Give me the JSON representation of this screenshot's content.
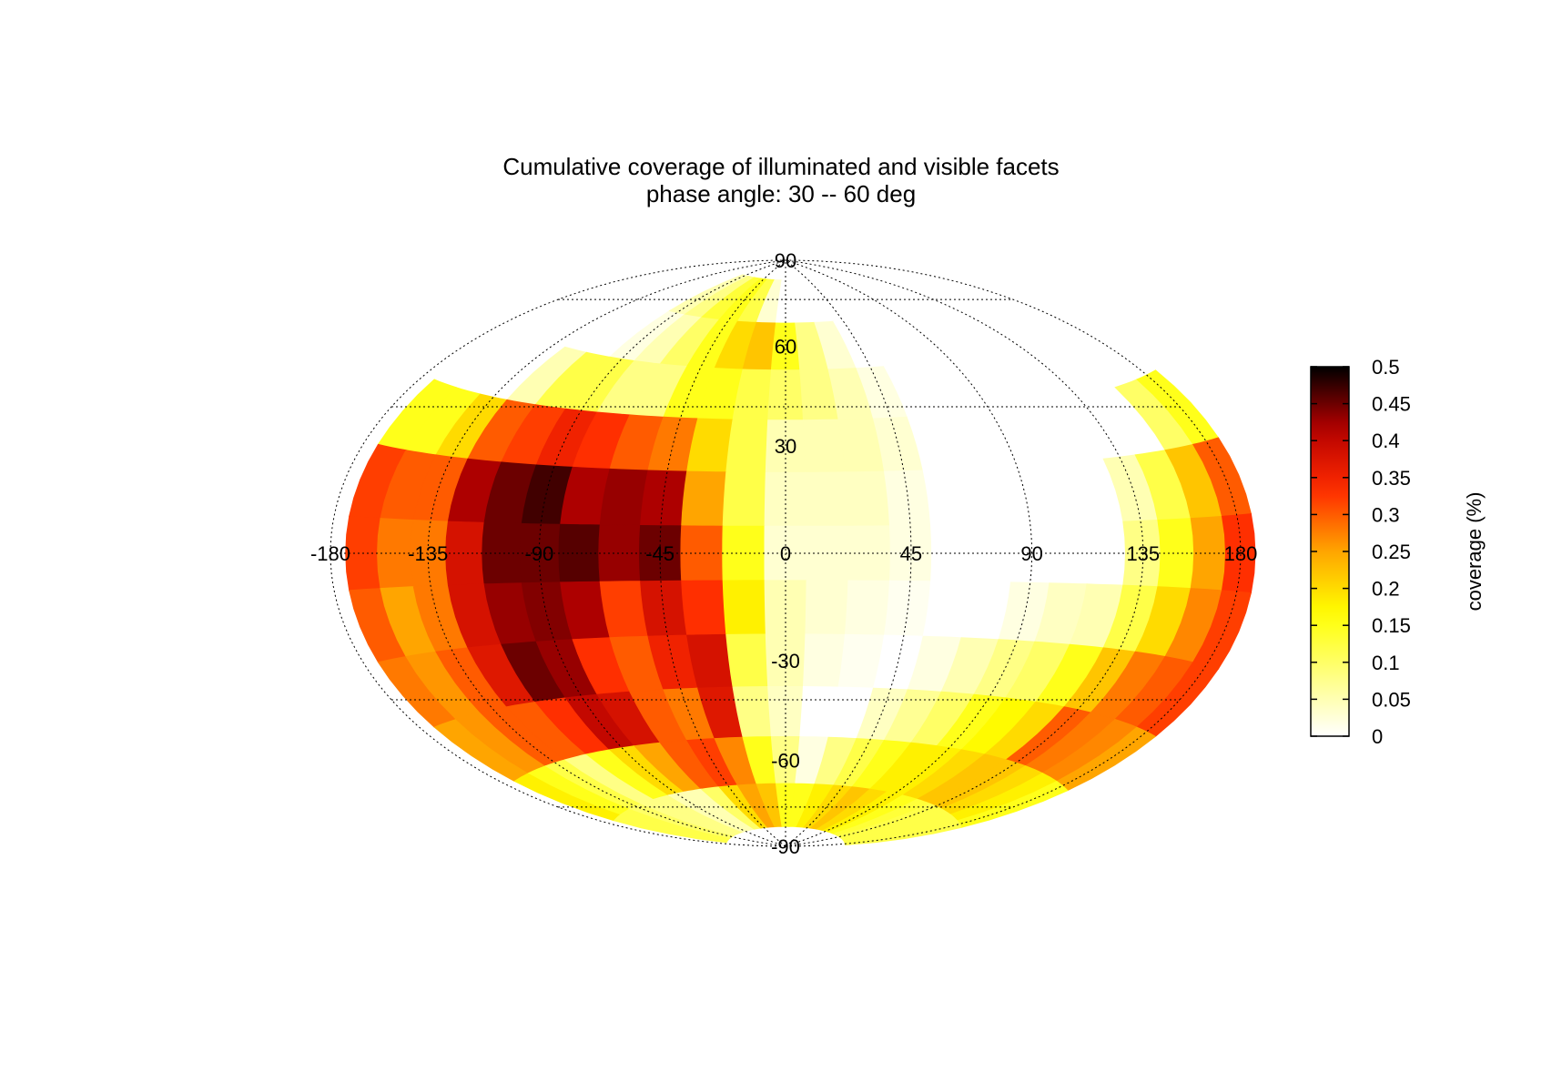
{
  "chart_data": {
    "type": "heatmap",
    "projection": "hammer-aitoff",
    "title": "Cumulative coverage of illuminated and visible facets",
    "subtitle": "phase angle:  30 --  60 deg",
    "longitude_ticks": [
      "-180",
      "-135",
      "-90",
      "-45",
      "0",
      "45",
      "90",
      "135",
      "180"
    ],
    "latitude_ticks": [
      "90",
      "60",
      "30",
      "-30",
      "-60",
      "-90"
    ],
    "grid": true,
    "colorbar": {
      "label": "coverage (%)",
      "range": [
        0,
        0.5
      ],
      "ticks": [
        "0",
        "0.05",
        "0.1",
        "0.15",
        "0.2",
        "0.25",
        "0.3",
        "0.35",
        "0.4",
        "0.45",
        "0.5"
      ],
      "colormap": [
        "#ffffff",
        "#ffff80",
        "#ffff00",
        "#ffa500",
        "#ff2a00",
        "#b40000",
        "#000000"
      ]
    },
    "lon_bins": [
      -165,
      -150,
      -135,
      -120,
      -105,
      -90,
      -75,
      -60,
      -45,
      -30,
      -15,
      0,
      15,
      30,
      45,
      60,
      75,
      90,
      105,
      120,
      135,
      150,
      165,
      180
    ],
    "lat_bins": [
      75,
      60,
      45,
      30,
      15,
      0,
      -15,
      -30,
      -45,
      -60,
      -75
    ],
    "coverage_grid": [
      [
        0,
        0,
        0,
        0,
        0,
        0.05,
        0.08,
        0.13,
        0.15,
        0.12,
        0.03,
        0,
        0,
        0,
        0,
        0,
        0,
        0,
        0,
        0,
        0,
        0,
        0,
        0
      ],
      [
        0,
        0,
        0,
        0,
        0,
        0.02,
        0.05,
        0.1,
        0.15,
        0.2,
        0.22,
        0.15,
        0.08,
        0.03,
        0,
        0,
        0,
        0,
        0,
        0,
        0,
        0,
        0,
        0
      ],
      [
        0,
        0,
        0,
        0.05,
        0.12,
        0.12,
        0.08,
        0.08,
        0.15,
        0.15,
        0.12,
        0.1,
        0.08,
        0.05,
        0.02,
        0,
        0,
        0,
        0,
        0,
        0,
        0,
        0,
        0
      ],
      [
        0.15,
        0.15,
        0.2,
        0.3,
        0.32,
        0.35,
        0.33,
        0.3,
        0.28,
        0.2,
        0.12,
        0.05,
        0.05,
        0.05,
        0.03,
        0,
        0,
        0,
        0,
        0,
        0,
        0,
        0.1,
        0.15
      ],
      [
        0.32,
        0.3,
        0.3,
        0.42,
        0.45,
        0.47,
        0.42,
        0.43,
        0.42,
        0.25,
        0.12,
        0.04,
        0.04,
        0.04,
        0.02,
        0,
        0,
        0,
        0,
        0,
        0.05,
        0.12,
        0.22,
        0.3
      ],
      [
        0.32,
        0.28,
        0.28,
        0.38,
        0.45,
        0.45,
        0.46,
        0.43,
        0.45,
        0.3,
        0.15,
        0.03,
        0.03,
        0.03,
        0.02,
        0,
        0,
        0,
        0,
        0,
        0.08,
        0.15,
        0.25,
        0.33
      ],
      [
        0.3,
        0.25,
        0.28,
        0.38,
        0.43,
        0.44,
        0.42,
        0.32,
        0.38,
        0.33,
        0.18,
        0.05,
        0.03,
        0.02,
        0.01,
        0,
        0,
        0.02,
        0.04,
        0.05,
        0.12,
        0.2,
        0.27,
        0.32
      ],
      [
        0.28,
        0.26,
        0.3,
        0.37,
        0.45,
        0.43,
        0.33,
        0.3,
        0.35,
        0.38,
        0.12,
        0.05,
        0.02,
        0.01,
        0,
        0.02,
        0.05,
        0.08,
        0.1,
        0.15,
        0.22,
        0.28,
        0.3,
        0.32
      ],
      [
        0.25,
        0.26,
        0.3,
        0.3,
        0.33,
        0.4,
        0.38,
        0.3,
        0.28,
        0.37,
        0.08,
        0.04,
        0,
        0,
        0.04,
        0.07,
        0.1,
        0.15,
        0.17,
        0.2,
        0.3,
        0.28,
        0.27,
        0.25
      ],
      [
        0.18,
        0.15,
        0.12,
        0.08,
        0.15,
        0.2,
        0.25,
        0.3,
        0.32,
        0.27,
        0.15,
        0.08,
        0.02,
        0.08,
        0.12,
        0.15,
        0.18,
        0.18,
        0.2,
        0.22,
        0.22,
        0.2,
        0.18,
        0.15
      ],
      [
        0.12,
        0.12,
        0.1,
        0.08,
        0.08,
        0.05,
        0.05,
        0.1,
        0.2,
        0.25,
        0.22,
        0.15,
        0.15,
        0.18,
        0.2,
        0.22,
        0.2,
        0.18,
        0.15,
        0.13,
        0.12,
        0.12,
        0.12,
        0.12
      ]
    ]
  }
}
